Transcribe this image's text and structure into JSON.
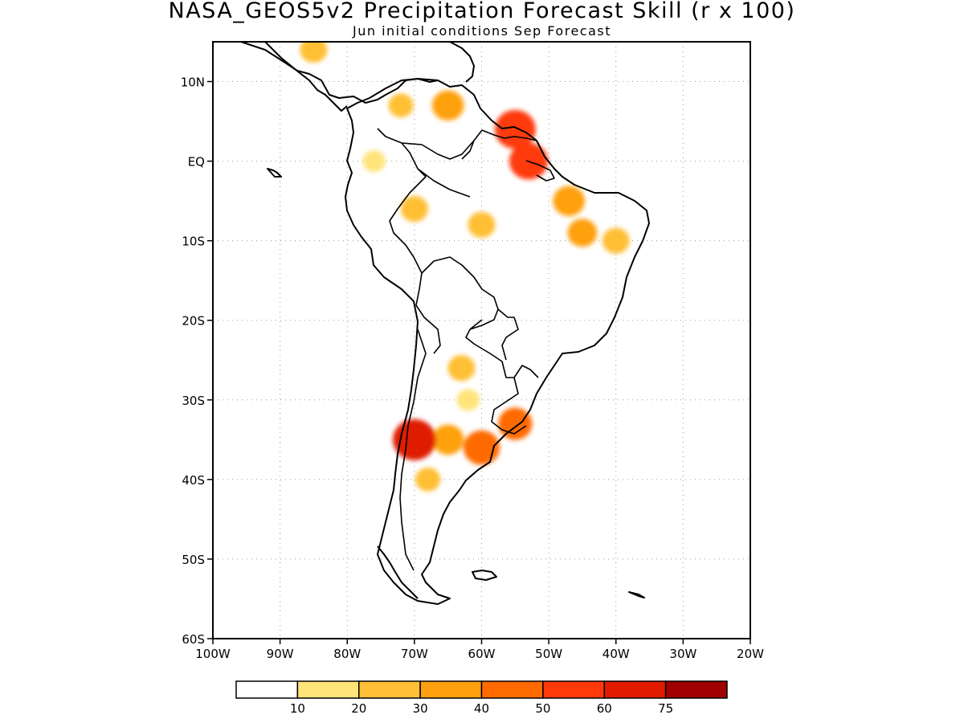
{
  "title": "NASA_GEOS5v2 Precipitation Forecast Skill (r x 100)",
  "subtitle": "Jun initial conditions  Sep Forecast",
  "axes": {
    "lon_ticks": [
      "100W",
      "90W",
      "80W",
      "70W",
      "60W",
      "50W",
      "40W",
      "30W",
      "20W"
    ],
    "lat_ticks": [
      "10N",
      "EQ",
      "10S",
      "20S",
      "30S",
      "40S",
      "50S",
      "60S"
    ],
    "lon_range": [
      -100,
      -20
    ],
    "lat_range": [
      -60,
      15
    ],
    "grid": "dotted"
  },
  "colorbar": {
    "levels": [
      "10",
      "20",
      "30",
      "40",
      "50",
      "60",
      "75"
    ],
    "colors": [
      "#ffffff",
      "#ffe47a",
      "#ffbf36",
      "#ffa00e",
      "#ff6b00",
      "#ff3a0a",
      "#e01b00",
      "#a10000"
    ]
  },
  "chart_data": {
    "type": "heatmap",
    "variable": "Precipitation forecast skill (r x 100)",
    "region": "South America",
    "skill_regions": [
      {
        "lon": -65,
        "lat": 7,
        "value": 35
      },
      {
        "lon": -55,
        "lat": 4,
        "value": 55
      },
      {
        "lon": -53,
        "lat": 0,
        "value": 50
      },
      {
        "lon": -47,
        "lat": -5,
        "value": 35
      },
      {
        "lon": -45,
        "lat": -9,
        "value": 30
      },
      {
        "lon": -40,
        "lat": -10,
        "value": 25
      },
      {
        "lon": -60,
        "lat": -8,
        "value": 25
      },
      {
        "lon": -70,
        "lat": -6,
        "value": 25
      },
      {
        "lon": -72,
        "lat": 7,
        "value": 20
      },
      {
        "lon": -76,
        "lat": 0,
        "value": 15
      },
      {
        "lon": -63,
        "lat": -26,
        "value": 25
      },
      {
        "lon": -62,
        "lat": -30,
        "value": 15
      },
      {
        "lon": -70,
        "lat": -35,
        "value": 60
      },
      {
        "lon": -65,
        "lat": -35,
        "value": 35
      },
      {
        "lon": -60,
        "lat": -36,
        "value": 45
      },
      {
        "lon": -55,
        "lat": -33,
        "value": 40
      },
      {
        "lon": -68,
        "lat": -40,
        "value": 20
      },
      {
        "lon": -85,
        "lat": 14,
        "value": 25
      }
    ]
  }
}
